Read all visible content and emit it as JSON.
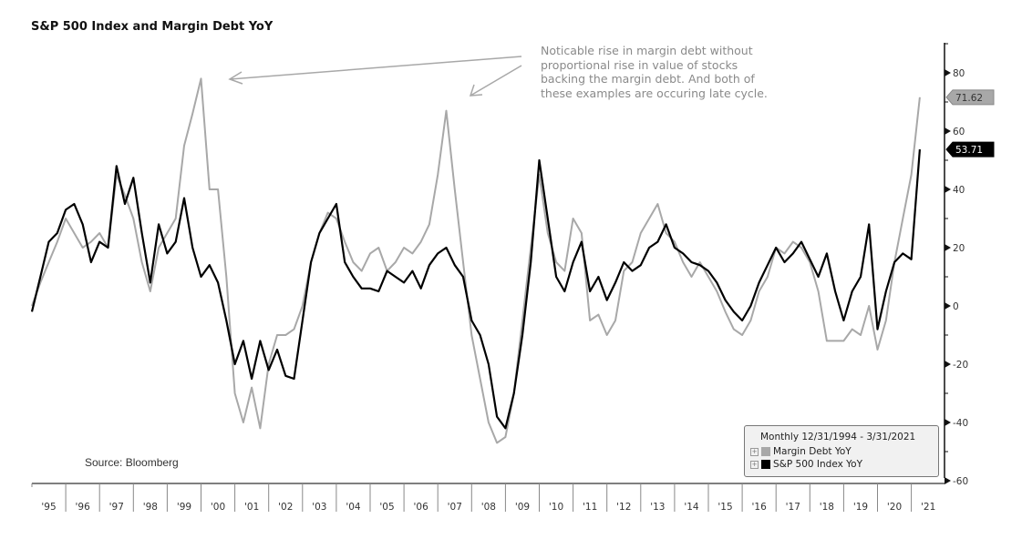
{
  "chart_data": {
    "type": "line",
    "title": "S&P 500 Index and Margin Debt YoY",
    "xlabel": "",
    "ylabel": "",
    "ylim": [
      -60,
      90
    ],
    "yticks": [
      80,
      60,
      40,
      20,
      0,
      -20,
      -40,
      -60
    ],
    "xticks": [
      "'95",
      "'96",
      "'97",
      "'98",
      "'99",
      "'00",
      "'01",
      "'02",
      "'03",
      "'04",
      "'05",
      "'06",
      "'07",
      "'08",
      "'09",
      "'10",
      "'11",
      "'12",
      "'13",
      "'14",
      "'15",
      "'16",
      "'17",
      "'18",
      "'19",
      "'20",
      "'21"
    ],
    "x_start_year": 1995,
    "x_step_years": 0.25,
    "grid": false,
    "legend": {
      "title": "Monthly 12/31/1994 - 3/31/2021",
      "placement": "bottom-right"
    },
    "series": [
      {
        "name": "Margin Debt YoY",
        "color": "#a8a8a8",
        "last_value_label": "71.62",
        "values": [
          0,
          8,
          15,
          22,
          30,
          25,
          20,
          22,
          25,
          20,
          45,
          38,
          30,
          15,
          5,
          20,
          25,
          30,
          55,
          66,
          78,
          40,
          40,
          10,
          -30,
          -40,
          -28,
          -42,
          -20,
          -10,
          -10,
          -8,
          0,
          15,
          25,
          32,
          30,
          22,
          15,
          12,
          18,
          20,
          12,
          15,
          20,
          18,
          22,
          28,
          45,
          67,
          40,
          15,
          -10,
          -25,
          -40,
          -47,
          -45,
          -30,
          -5,
          20,
          45,
          25,
          15,
          12,
          30,
          25,
          -5,
          -3,
          -10,
          -5,
          12,
          15,
          25,
          30,
          35,
          25,
          22,
          15,
          10,
          15,
          10,
          5,
          -2,
          -8,
          -10,
          -5,
          5,
          10,
          20,
          18,
          22,
          20,
          15,
          5,
          -12,
          -12,
          -12,
          -8,
          -10,
          0,
          -15,
          -5,
          15,
          30,
          45,
          71.62
        ]
      },
      {
        "name": "S&P 500 Index YoY",
        "color": "#000000",
        "last_value_label": "53.71",
        "values": [
          -2,
          10,
          22,
          25,
          33,
          35,
          28,
          15,
          22,
          20,
          48,
          35,
          44,
          25,
          8,
          28,
          18,
          22,
          37,
          20,
          10,
          14,
          8,
          -5,
          -20,
          -12,
          -25,
          -12,
          -22,
          -15,
          -24,
          -25,
          -5,
          15,
          25,
          30,
          35,
          15,
          10,
          6,
          6,
          5,
          12,
          10,
          8,
          12,
          6,
          14,
          18,
          20,
          14,
          10,
          -5,
          -10,
          -20,
          -38,
          -42,
          -30,
          -10,
          15,
          50,
          30,
          10,
          5,
          15,
          22,
          5,
          10,
          2,
          8,
          15,
          12,
          14,
          20,
          22,
          28,
          20,
          18,
          15,
          14,
          12,
          8,
          2,
          -2,
          -5,
          0,
          8,
          14,
          20,
          15,
          18,
          22,
          16,
          10,
          18,
          5,
          -5,
          5,
          10,
          28,
          -8,
          5,
          15,
          18,
          16,
          53.71
        ]
      }
    ],
    "annotation": "Noticable rise in margin debt without\nproportional rise in value of stocks\nbacking the margin debt. And both of\nthese examples are occuring late cycle.",
    "source": "Source: Bloomberg"
  }
}
